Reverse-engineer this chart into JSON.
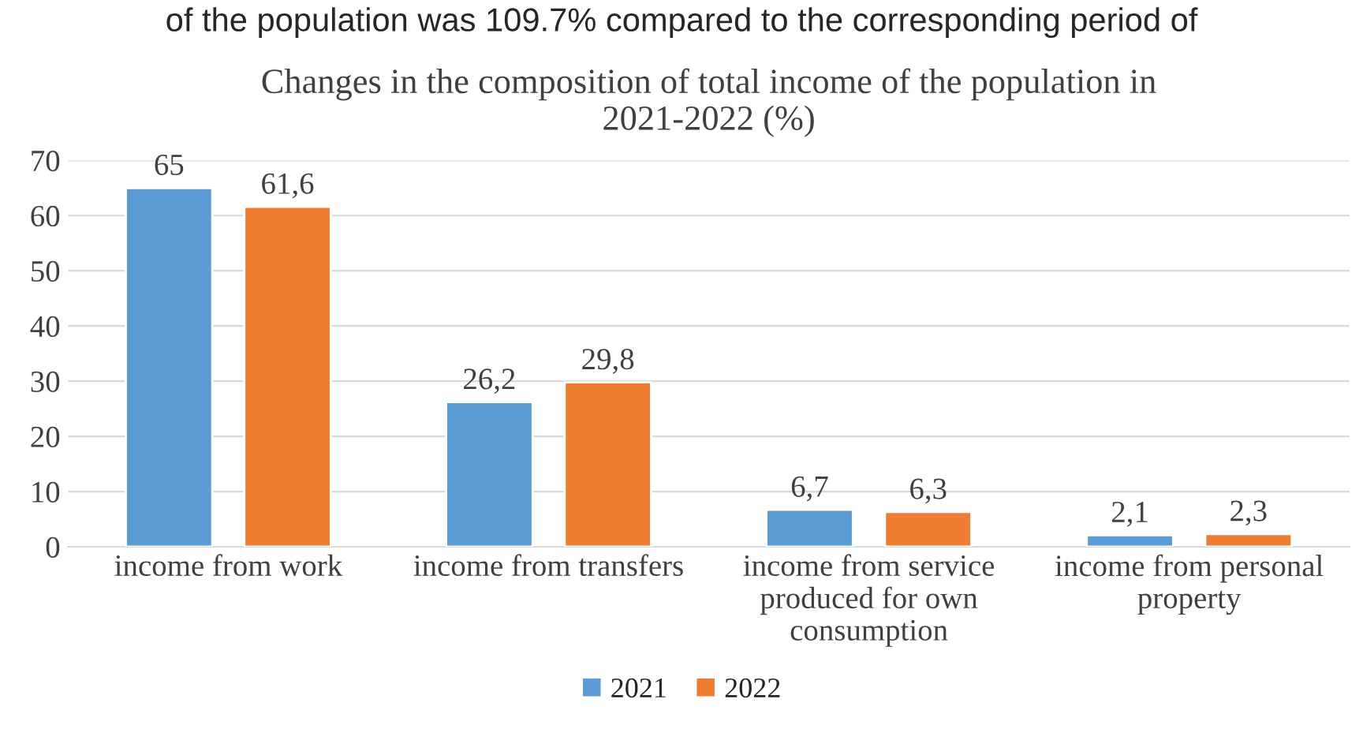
{
  "chart_data": {
    "type": "bar",
    "title": "Changes in the composition of total income of the population in\n2021-2022 (%)",
    "annotations": [
      "of the population was 109.7% compared to the corresponding period of"
    ],
    "categories": [
      "income from work",
      "income from transfers",
      "income from service\nproduced for own\nconsumption",
      "income from personal\nproperty"
    ],
    "series": [
      {
        "name": "2021",
        "color": "#5b9bd5",
        "values": [
          65,
          26.2,
          6.7,
          2.1
        ],
        "value_labels": [
          "65",
          "26,2",
          "6,7",
          "2,1"
        ]
      },
      {
        "name": "2022",
        "color": "#ed7d31",
        "values": [
          61.6,
          29.8,
          6.3,
          2.3
        ],
        "value_labels": [
          "61,6",
          "29,8",
          "6,3",
          "2,3"
        ]
      }
    ],
    "ylim": [
      0,
      70
    ],
    "yticks": [
      0,
      10,
      20,
      30,
      40,
      50,
      60,
      70
    ],
    "grid": "y",
    "legend": "bottom"
  }
}
